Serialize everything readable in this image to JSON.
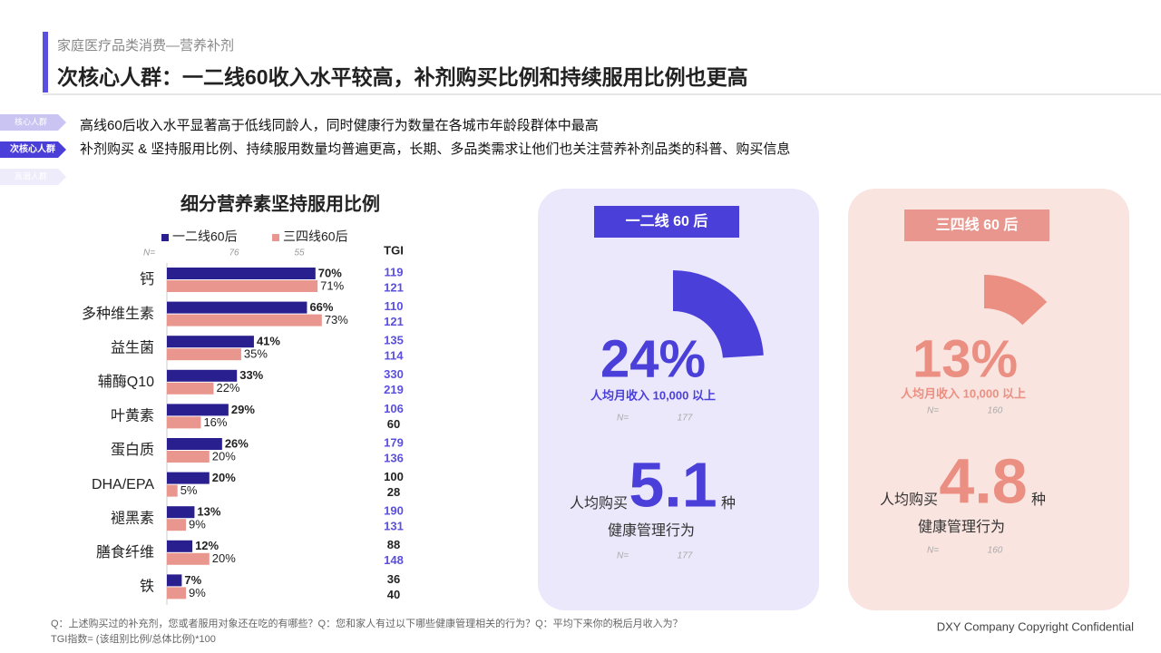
{
  "header": {
    "section": "家庭医疗品类消费—营养补剂",
    "title": "次核心人群：一二线60收入水平较高，补剂购买比例和持续服用比例也更高"
  },
  "tags": [
    "核心人群",
    "次核心人群",
    "高潜人群"
  ],
  "bullets": [
    "高线60后收入水平显著高于低线同龄人，同时健康行为数量在各城市年龄段群体中最高",
    "补剂购买 & 坚持服用比例、持续服用数量均普遍更高，长期、多品类需求让他们也关注营养补剂品类的科普、购买信息"
  ],
  "chart_data": {
    "type": "hbar",
    "title": "细分营养素坚持服用比例",
    "categories": [
      "钙",
      "多种维生素",
      "益生菌",
      "辅酶Q10",
      "叶黄素",
      "蛋白质",
      "DHA/EPA",
      "褪黑素",
      "膳食纤维",
      "铁"
    ],
    "xlim": [
      0,
      100
    ],
    "sample_label": "N=",
    "tgi_label": "TGI",
    "series": [
      {
        "name": "一二线60后",
        "color": "#2a1f8f",
        "n": 76,
        "values": [
          70,
          66,
          41,
          33,
          29,
          26,
          20,
          13,
          12,
          7
        ],
        "value_labels": [
          "70%",
          "66%",
          "41%",
          "33%",
          "29%",
          "26%",
          "20%",
          "13%",
          "12%",
          "7%"
        ],
        "tgi": [
          119,
          110,
          135,
          330,
          106,
          179,
          100,
          190,
          88,
          36
        ]
      },
      {
        "name": "三四线60后",
        "color": "#e9978e",
        "n": 55,
        "values": [
          71,
          73,
          35,
          22,
          16,
          20,
          5,
          9,
          20,
          9
        ],
        "value_labels": [
          "71%",
          "73%",
          "35%",
          "22%",
          "16%",
          "20%",
          "5%",
          "9%",
          "20%",
          "9%"
        ],
        "tgi": [
          121,
          121,
          114,
          219,
          60,
          136,
          28,
          131,
          148,
          40
        ]
      }
    ]
  },
  "cards": [
    {
      "title": "一二线 60 后",
      "share": 24,
      "share_label": "24%",
      "income_label": "人均月收入 10,000 以上",
      "n_label": "N=",
      "n": 177,
      "buy_prefix": "人均购买",
      "count": 5.1,
      "count_unit": "种",
      "count_desc": "健康管理行为",
      "n2": 177
    },
    {
      "title": "三四线 60 后",
      "share": 13,
      "share_label": "13%",
      "income_label": "人均月收入 10,000 以上",
      "n_label": "N=",
      "n": 160,
      "buy_prefix": "人均购买",
      "count": 4.8,
      "count_unit": "种",
      "count_desc": "健康管理行为",
      "n2": 160
    }
  ],
  "footer": {
    "notes": [
      "Q：上述购买过的补充剂，您或者服用对象还在吃的有哪些？Q：您和家人有过以下哪些健康管理相关的行为？Q：平均下来你的税后月收入为？",
      "TGI指数= (该组别比例/总体比例)*100"
    ],
    "copyright": "DXY Company Copyright Confidential"
  }
}
